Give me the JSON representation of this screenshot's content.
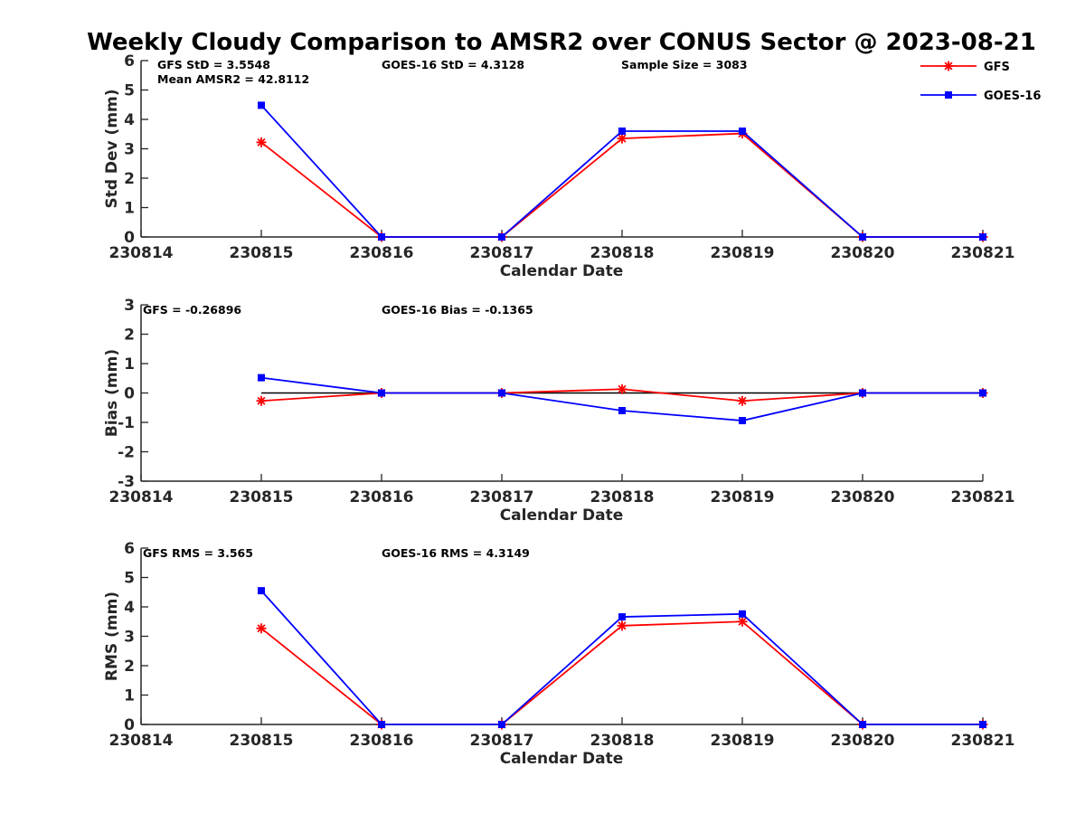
{
  "chart_data": {
    "title": "Weekly Cloudy Comparison to AMSR2 over CONUS Sector @ 2023-08-21",
    "legend": {
      "placement": "top-right",
      "entries": [
        {
          "name": "GFS",
          "color": "#ff0000",
          "marker": "asterisk"
        },
        {
          "name": "GOES-16",
          "color": "#0000ff",
          "marker": "square"
        }
      ]
    },
    "panels": [
      {
        "type": "line",
        "xlabel": "Calendar Date",
        "ylabel": "Std Dev (mm)",
        "x_ticks": [
          "230814",
          "230815",
          "230816",
          "230817",
          "230818",
          "230819",
          "230820",
          "230821"
        ],
        "ylim": [
          0,
          6
        ],
        "y_ticks": [
          0,
          1,
          2,
          3,
          4,
          5,
          6
        ],
        "zero_line": false,
        "annotations": [
          {
            "text": "GFS StD = 3.5548"
          },
          {
            "text": "Mean AMSR2 = 42.8112"
          },
          {
            "text": "GOES-16 StD = 4.3128"
          },
          {
            "text": "Sample Size = 3083"
          }
        ],
        "series": [
          {
            "name": "GFS",
            "color": "#ff0000",
            "marker": "asterisk",
            "values": [
              3.22,
              0,
              0,
              3.35,
              3.52,
              0,
              0
            ]
          },
          {
            "name": "GOES-16",
            "color": "#0000ff",
            "marker": "square",
            "values": [
              4.48,
              0,
              0,
              3.6,
              3.6,
              0,
              0
            ]
          }
        ]
      },
      {
        "type": "line",
        "xlabel": "Calendar Date",
        "ylabel": "Bias (mm)",
        "x_ticks": [
          "230814",
          "230815",
          "230816",
          "230817",
          "230818",
          "230819",
          "230820",
          "230821"
        ],
        "ylim": [
          -3,
          3
        ],
        "y_ticks": [
          -3,
          -2,
          -1,
          0,
          1,
          2,
          3
        ],
        "zero_line": true,
        "annotations": [
          {
            "text": "GFS = -0.26896"
          },
          {
            "text": "GOES-16 Bias  = -0.1365"
          }
        ],
        "series": [
          {
            "name": "GFS",
            "color": "#ff0000",
            "marker": "asterisk",
            "values": [
              -0.27,
              0,
              0,
              0.13,
              -0.27,
              0,
              0
            ]
          },
          {
            "name": "GOES-16",
            "color": "#0000ff",
            "marker": "square",
            "values": [
              0.52,
              0,
              0,
              -0.6,
              -0.94,
              0,
              0
            ]
          }
        ]
      },
      {
        "type": "line",
        "xlabel": "Calendar Date",
        "ylabel": "RMS (mm)",
        "x_ticks": [
          "230814",
          "230815",
          "230816",
          "230817",
          "230818",
          "230819",
          "230820",
          "230821"
        ],
        "ylim": [
          0,
          6
        ],
        "y_ticks": [
          0,
          1,
          2,
          3,
          4,
          5,
          6
        ],
        "zero_line": false,
        "annotations": [
          {
            "text": "GFS RMS = 3.565"
          },
          {
            "text": "GOES-16 RMS = 4.3149"
          }
        ],
        "series": [
          {
            "name": "GFS",
            "color": "#ff0000",
            "marker": "asterisk",
            "values": [
              3.27,
              0,
              0,
              3.36,
              3.5,
              0,
              0
            ]
          },
          {
            "name": "GOES-16",
            "color": "#0000ff",
            "marker": "square",
            "values": [
              4.55,
              0,
              0,
              3.66,
              3.76,
              0,
              0
            ]
          }
        ]
      }
    ]
  }
}
